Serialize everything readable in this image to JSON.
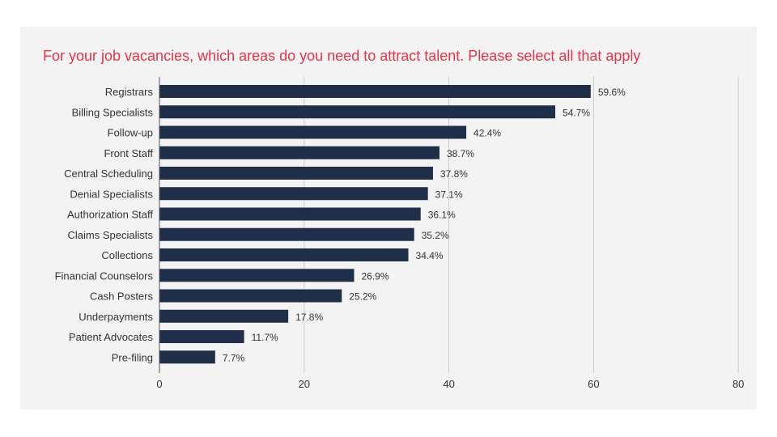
{
  "chart_data": {
    "type": "bar",
    "orientation": "horizontal",
    "title": "For your job vacancies, which areas do you need to attract talent. Please select all that apply",
    "xlabel": "",
    "ylabel": "",
    "xlim": [
      0,
      80
    ],
    "xticks": [
      0,
      20,
      40,
      60,
      80
    ],
    "grid": true,
    "categories": [
      "Registrars",
      "Billing Specialists",
      "Follow-up",
      "Front Staff",
      "Central Scheduling",
      "Denial Specialists",
      "Authorization Staff",
      "Claims Specialists",
      "Collections",
      "Financial Counselors",
      "Cash Posters",
      "Underpayments",
      "Patient Advocates",
      "Pre-filing"
    ],
    "values": [
      59.6,
      54.7,
      42.4,
      38.7,
      37.8,
      37.1,
      36.1,
      35.2,
      34.4,
      26.9,
      25.2,
      17.8,
      11.7,
      7.7
    ],
    "value_labels": [
      "59.6%",
      "54.7%",
      "42.4%",
      "38.7%",
      "37.8%",
      "37.1%",
      "36.1%",
      "35.2%",
      "34.4%",
      "26.9%",
      "25.2%",
      "17.8%",
      "11.7%",
      "7.7%"
    ],
    "colors": {
      "bar": "#1f2f4a",
      "title": "#e8334a",
      "background": "#f3f3f3",
      "grid": "#cccccc"
    }
  }
}
